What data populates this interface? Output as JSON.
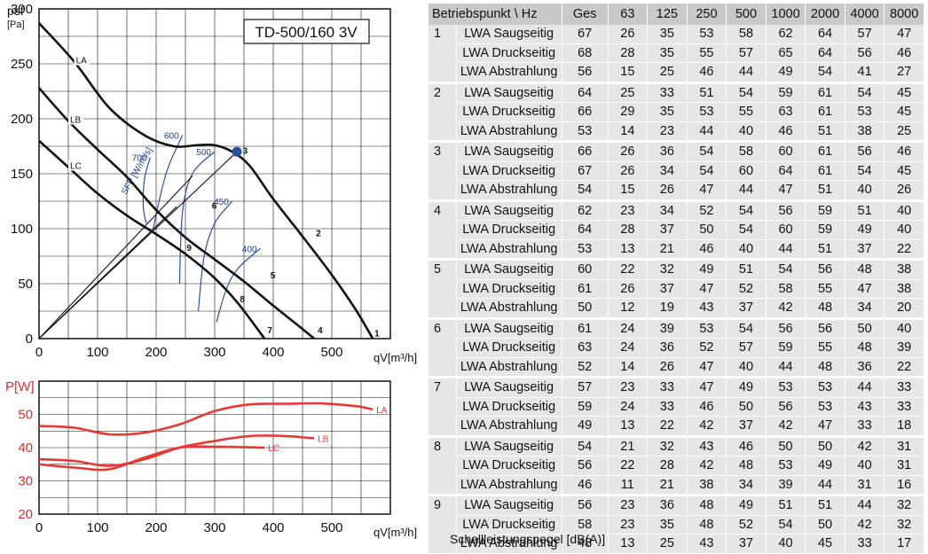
{
  "chart_data": [
    {
      "type": "line",
      "title": "TD-500/160 3V",
      "ylabel": "psf",
      "yunit": "[Pa]",
      "xlabel": "qV[m³/h]",
      "xlim": [
        0,
        600
      ],
      "ylim": [
        0,
        300
      ],
      "xticks": [
        "0",
        "100",
        "200",
        "300",
        "400",
        "500"
      ],
      "yticks": [
        "0",
        "50",
        "100",
        "150",
        "200",
        "250",
        "300"
      ],
      "grid": true,
      "series": [
        {
          "name": "LA",
          "x": [
            0,
            60,
            120,
            180,
            230,
            270,
            300,
            330,
            360,
            400,
            450,
            500,
            540,
            570
          ],
          "y": [
            287,
            252,
            210,
            185,
            175,
            176,
            176,
            170,
            157,
            127,
            93,
            58,
            27,
            0
          ]
        },
        {
          "name": "LB",
          "x": [
            0,
            50,
            100,
            150,
            200,
            250,
            300,
            350,
            400,
            440,
            470
          ],
          "y": [
            228,
            198,
            172,
            147,
            117,
            92,
            72,
            52,
            30,
            13,
            0
          ]
        },
        {
          "name": "LC",
          "x": [
            0,
            50,
            100,
            150,
            200,
            250,
            300,
            340,
            385
          ],
          "y": [
            180,
            156,
            132,
            112,
            95,
            77,
            55,
            32,
            0
          ]
        }
      ],
      "sfp_lines": [
        {
          "label": "700",
          "x": [
            190,
            180,
            178,
            183
          ],
          "y": [
            165,
            145,
            120,
            105
          ]
        },
        {
          "label": "600",
          "x": [
            245,
            220,
            205,
            195
          ],
          "y": [
            185,
            155,
            125,
            100
          ]
        },
        {
          "label": "500",
          "x": [
            300,
            262,
            245,
            240
          ],
          "y": [
            170,
            150,
            115,
            50
          ]
        },
        {
          "label": "450",
          "x": [
            330,
            300,
            282,
            272
          ],
          "y": [
            125,
            105,
            75,
            25
          ]
        },
        {
          "label": "400",
          "x": [
            378,
            340,
            320,
            303
          ],
          "y": [
            82,
            64,
            45,
            15
          ]
        }
      ],
      "sfp_label": "SFP [W/m³/s]",
      "operating_lines": [
        {
          "x": [
            0,
            338
          ],
          "y": [
            0,
            170
          ]
        },
        {
          "x": [
            0,
            262
          ],
          "y": [
            0,
            148
          ]
        },
        {
          "x": [
            0,
            235
          ],
          "y": [
            0,
            120
          ]
        }
      ],
      "operating_point": {
        "x": 338,
        "y": 170
      },
      "points": [
        {
          "label": "1",
          "x": 573,
          "y": 2
        },
        {
          "label": "2",
          "x": 473,
          "y": 93
        },
        {
          "label": "3",
          "x": 348,
          "y": 168
        },
        {
          "label": "4",
          "x": 476,
          "y": 5
        },
        {
          "label": "5",
          "x": 395,
          "y": 55
        },
        {
          "label": "6",
          "x": 295,
          "y": 118
        },
        {
          "label": "7",
          "x": 390,
          "y": 5
        },
        {
          "label": "8",
          "x": 343,
          "y": 33
        },
        {
          "label": "9",
          "x": 252,
          "y": 80
        }
      ]
    },
    {
      "type": "line",
      "ylabel": "P[W]",
      "xlabel": "qV[m³/h]",
      "xlim": [
        0,
        600
      ],
      "ylim": [
        20,
        60
      ],
      "xticks": [
        "0",
        "100",
        "200",
        "300",
        "400",
        "500"
      ],
      "yticks": [
        "20",
        "30",
        "40",
        "50"
      ],
      "grid": true,
      "color": "#e53935",
      "series": [
        {
          "name": "LA",
          "x": [
            0,
            60,
            120,
            180,
            240,
            300,
            360,
            420,
            480,
            540,
            570
          ],
          "y": [
            46.5,
            46,
            44,
            44.5,
            47,
            51,
            53,
            53.2,
            53.3,
            52.5,
            51.5
          ]
        },
        {
          "name": "LB",
          "x": [
            0,
            60,
            120,
            180,
            240,
            300,
            360,
            420,
            470
          ],
          "y": [
            36.5,
            36,
            34.5,
            36.5,
            40,
            42,
            43.5,
            43.5,
            42.8
          ]
        },
        {
          "name": "LC",
          "x": [
            0,
            60,
            120,
            180,
            240,
            300,
            385
          ],
          "y": [
            35,
            34,
            33.5,
            37,
            40,
            40.3,
            40
          ]
        }
      ]
    }
  ],
  "table": {
    "header": [
      "Betriebspunkt \\ Hz",
      "Ges",
      "63",
      "125",
      "250",
      "500",
      "1000",
      "2000",
      "4000",
      "8000"
    ],
    "groups": [
      {
        "point": "1",
        "rows": [
          {
            "label": "LWA Saugseitig",
            "values": [
              "67",
              "26",
              "35",
              "53",
              "58",
              "62",
              "64",
              "57",
              "47"
            ]
          },
          {
            "label": "LWA Druckseitig",
            "values": [
              "68",
              "28",
              "35",
              "55",
              "57",
              "65",
              "64",
              "56",
              "46"
            ]
          },
          {
            "label": "LWA Abstrahlung",
            "values": [
              "56",
              "15",
              "25",
              "46",
              "44",
              "49",
              "54",
              "41",
              "27"
            ]
          }
        ]
      },
      {
        "point": "2",
        "rows": [
          {
            "label": "LWA Saugseitig",
            "values": [
              "64",
              "25",
              "33",
              "51",
              "54",
              "59",
              "61",
              "54",
              "45"
            ]
          },
          {
            "label": "LWA Druckseitig",
            "values": [
              "66",
              "29",
              "35",
              "53",
              "55",
              "63",
              "61",
              "53",
              "45"
            ]
          },
          {
            "label": "LWA Abstrahlung",
            "values": [
              "53",
              "14",
              "23",
              "44",
              "40",
              "46",
              "51",
              "38",
              "25"
            ]
          }
        ]
      },
      {
        "point": "3",
        "rows": [
          {
            "label": "LWA Saugseitig",
            "values": [
              "66",
              "26",
              "36",
              "54",
              "58",
              "60",
              "61",
              "56",
              "46"
            ]
          },
          {
            "label": "LWA Druckseitig",
            "values": [
              "67",
              "26",
              "34",
              "54",
              "60",
              "64",
              "61",
              "54",
              "45"
            ]
          },
          {
            "label": "LWA Abstrahlung",
            "values": [
              "54",
              "15",
              "26",
              "47",
              "44",
              "47",
              "51",
              "40",
              "26"
            ]
          }
        ]
      },
      {
        "point": "4",
        "rows": [
          {
            "label": "LWA Saugseitig",
            "values": [
              "62",
              "23",
              "34",
              "52",
              "54",
              "56",
              "59",
              "51",
              "40"
            ]
          },
          {
            "label": "LWA Druckseitig",
            "values": [
              "64",
              "28",
              "37",
              "50",
              "54",
              "60",
              "59",
              "49",
              "40"
            ]
          },
          {
            "label": "LWA Abstrahlung",
            "values": [
              "53",
              "13",
              "21",
              "46",
              "40",
              "44",
              "51",
              "37",
              "22"
            ]
          }
        ]
      },
      {
        "point": "5",
        "rows": [
          {
            "label": "LWA Saugseitig",
            "values": [
              "60",
              "22",
              "32",
              "49",
              "51",
              "54",
              "56",
              "48",
              "38"
            ]
          },
          {
            "label": "LWA Druckseitig",
            "values": [
              "61",
              "26",
              "37",
              "47",
              "52",
              "58",
              "55",
              "47",
              "38"
            ]
          },
          {
            "label": "LWA Abstrahlung",
            "values": [
              "50",
              "12",
              "19",
              "43",
              "37",
              "42",
              "48",
              "34",
              "20"
            ]
          }
        ]
      },
      {
        "point": "6",
        "rows": [
          {
            "label": "LWA Saugseitig",
            "values": [
              "61",
              "24",
              "39",
              "53",
              "54",
              "56",
              "56",
              "50",
              "40"
            ]
          },
          {
            "label": "LWA Druckseitig",
            "values": [
              "63",
              "24",
              "36",
              "52",
              "57",
              "59",
              "55",
              "48",
              "39"
            ]
          },
          {
            "label": "LWA Abstrahlung",
            "values": [
              "52",
              "14",
              "26",
              "47",
              "40",
              "44",
              "48",
              "36",
              "22"
            ]
          }
        ]
      },
      {
        "point": "7",
        "rows": [
          {
            "label": "LWA Saugseitig",
            "values": [
              "57",
              "23",
              "33",
              "47",
              "49",
              "53",
              "53",
              "44",
              "33"
            ]
          },
          {
            "label": "LWA Druckseitig",
            "values": [
              "59",
              "24",
              "33",
              "46",
              "50",
              "56",
              "53",
              "43",
              "33"
            ]
          },
          {
            "label": "LWA Abstrahlung",
            "values": [
              "49",
              "13",
              "22",
              "42",
              "37",
              "42",
              "47",
              "33",
              "18"
            ]
          }
        ]
      },
      {
        "point": "8",
        "rows": [
          {
            "label": "LWA Saugseitig",
            "values": [
              "54",
              "21",
              "32",
              "43",
              "46",
              "50",
              "50",
              "42",
              "31"
            ]
          },
          {
            "label": "LWA Druckseitig",
            "values": [
              "56",
              "22",
              "28",
              "42",
              "48",
              "53",
              "49",
              "40",
              "31"
            ]
          },
          {
            "label": "LWA Abstrahlung",
            "values": [
              "46",
              "11",
              "21",
              "38",
              "34",
              "39",
              "44",
              "31",
              "16"
            ]
          }
        ]
      },
      {
        "point": "9",
        "rows": [
          {
            "label": "LWA Saugseitig",
            "values": [
              "56",
              "23",
              "36",
              "48",
              "49",
              "51",
              "51",
              "44",
              "32"
            ]
          },
          {
            "label": "LWA Druckseitig",
            "values": [
              "58",
              "23",
              "35",
              "48",
              "52",
              "54",
              "50",
              "42",
              "32"
            ]
          },
          {
            "label": "LWA Abstrahlung",
            "values": [
              "48",
              "13",
              "25",
              "43",
              "37",
              "40",
              "45",
              "33",
              "17"
            ]
          }
        ]
      }
    ],
    "caption": "Schallleistungspegel [dB(A)]"
  }
}
